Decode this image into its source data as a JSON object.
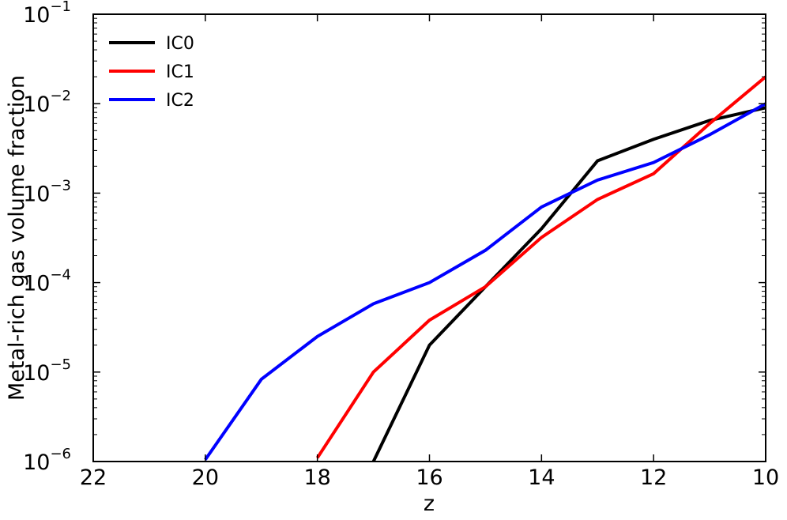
{
  "chart_data": {
    "type": "line",
    "xlabel": "z",
    "ylabel": "Metal-rich gas volume fraction",
    "x_axis": {
      "reversed": true,
      "xlim": [
        22,
        10
      ],
      "ticks": [
        22,
        20,
        18,
        16,
        14,
        12,
        10
      ]
    },
    "y_axis": {
      "scale": "log",
      "ylim": [
        1e-06,
        0.1
      ],
      "ticks": [
        {
          "value": 1e-06,
          "base": "10",
          "exp": "−6"
        },
        {
          "value": 1e-05,
          "base": "10",
          "exp": "−5"
        },
        {
          "value": 0.0001,
          "base": "10",
          "exp": "−4"
        },
        {
          "value": 0.001,
          "base": "10",
          "exp": "−3"
        },
        {
          "value": 0.01,
          "base": "10",
          "exp": "−2"
        },
        {
          "value": 0.1,
          "base": "10",
          "exp": "−1"
        }
      ]
    },
    "legend": {
      "position": "top-left"
    },
    "grid": false,
    "series": [
      {
        "name": "IC0",
        "color": "#000000",
        "points": [
          [
            17,
            1e-06
          ],
          [
            16,
            2e-05
          ],
          [
            15,
            9e-05
          ],
          [
            14,
            0.0004
          ],
          [
            13,
            0.0023
          ],
          [
            12,
            0.004
          ],
          [
            11,
            0.0065
          ],
          [
            10,
            0.009
          ]
        ]
      },
      {
        "name": "IC1",
        "color": "#ff0000",
        "points": [
          [
            18,
            1.1e-06
          ],
          [
            17,
            1e-05
          ],
          [
            16,
            3.8e-05
          ],
          [
            15,
            9e-05
          ],
          [
            14,
            0.00032
          ],
          [
            13,
            0.00085
          ],
          [
            12,
            0.00165
          ],
          [
            11,
            0.006
          ],
          [
            10,
            0.02
          ]
        ]
      },
      {
        "name": "IC2",
        "color": "#0000ff",
        "points": [
          [
            20,
            1.05e-06
          ],
          [
            19,
            8.3e-06
          ],
          [
            18,
            2.5e-05
          ],
          [
            17,
            5.8e-05
          ],
          [
            16,
            0.0001
          ],
          [
            15,
            0.00023
          ],
          [
            14,
            0.0007
          ],
          [
            13,
            0.0014
          ],
          [
            12,
            0.0022
          ],
          [
            11,
            0.0045
          ],
          [
            10,
            0.01
          ]
        ]
      }
    ]
  }
}
